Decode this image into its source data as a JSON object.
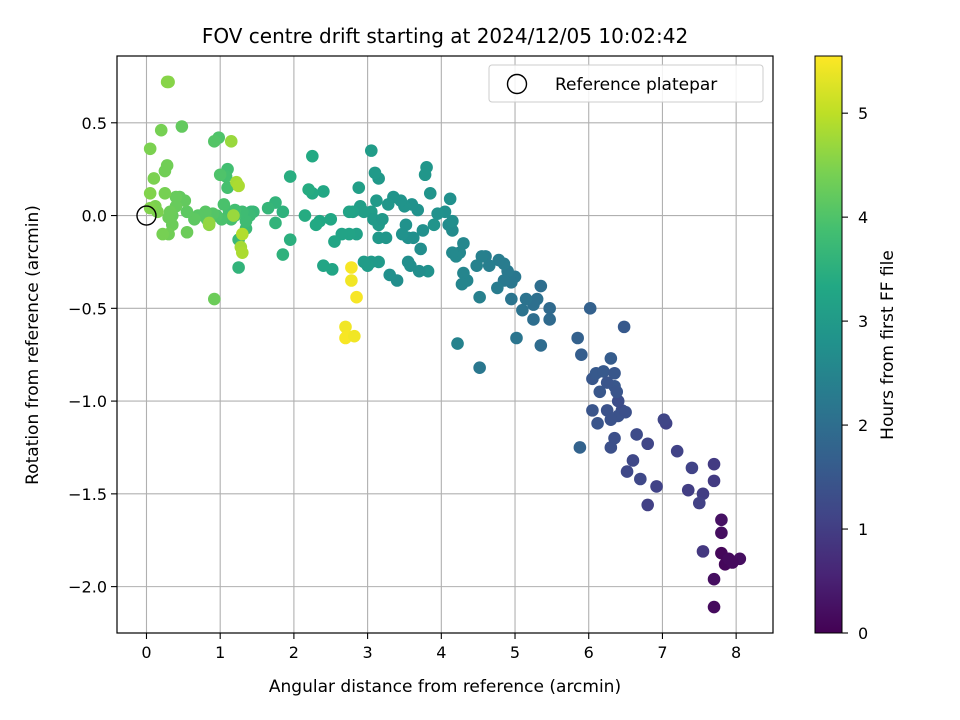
{
  "chart_data": {
    "type": "scatter",
    "title": "FOV centre drift starting at 2024/12/05 10:02:42",
    "xlabel": "Angular distance from reference (arcmin)",
    "ylabel": "Rotation from reference (arcmin)",
    "colorbar_label": "Hours from first FF file",
    "xlim": [
      -0.4,
      8.5
    ],
    "ylim": [
      -2.25,
      0.86
    ],
    "xticks": [
      0,
      1,
      2,
      3,
      4,
      5,
      6,
      7,
      8
    ],
    "yticks": [
      0.5,
      0.0,
      -0.5,
      -1.0,
      -1.5,
      -2.0
    ],
    "ytick_labels": [
      "0.5",
      "0.0",
      "−0.5",
      "−1.0",
      "−1.5",
      "−2.0"
    ],
    "colorbar_range": [
      0,
      5.55
    ],
    "colorbar_ticks": [
      0,
      1,
      2,
      3,
      4,
      5
    ],
    "colormap": "viridis",
    "grid": true,
    "legend": {
      "label": "Reference platepar",
      "placement": "top-right"
    },
    "reference_point": {
      "x": 0,
      "y": 0
    },
    "points": [
      {
        "x": 7.7,
        "y": -2.11,
        "h": 0.15
      },
      {
        "x": 7.7,
        "y": -1.96,
        "h": 0.2
      },
      {
        "x": 7.8,
        "y": -1.82,
        "h": 0.1
      },
      {
        "x": 7.85,
        "y": -1.88,
        "h": 0.1
      },
      {
        "x": 7.9,
        "y": -1.85,
        "h": 0.15
      },
      {
        "x": 8.05,
        "y": -1.85,
        "h": 0.2
      },
      {
        "x": 7.8,
        "y": -1.71,
        "h": 0.2
      },
      {
        "x": 7.8,
        "y": -1.64,
        "h": 0.25
      },
      {
        "x": 7.95,
        "y": -1.87,
        "h": 0.15
      },
      {
        "x": 7.55,
        "y": -1.81,
        "h": 0.9
      },
      {
        "x": 7.7,
        "y": -1.43,
        "h": 0.95
      },
      {
        "x": 7.7,
        "y": -1.34,
        "h": 0.95
      },
      {
        "x": 7.55,
        "y": -1.5,
        "h": 1.0
      },
      {
        "x": 7.5,
        "y": -1.55,
        "h": 1.05
      },
      {
        "x": 7.35,
        "y": -1.48,
        "h": 1.0
      },
      {
        "x": 7.4,
        "y": -1.36,
        "h": 1.1
      },
      {
        "x": 7.2,
        "y": -1.27,
        "h": 1.1
      },
      {
        "x": 7.05,
        "y": -1.12,
        "h": 1.1
      },
      {
        "x": 7.02,
        "y": -1.1,
        "h": 1.15
      },
      {
        "x": 6.92,
        "y": -1.46,
        "h": 1.1
      },
      {
        "x": 6.8,
        "y": -1.56,
        "h": 1.05
      },
      {
        "x": 6.8,
        "y": -1.23,
        "h": 1.15
      },
      {
        "x": 6.7,
        "y": -1.42,
        "h": 1.2
      },
      {
        "x": 6.6,
        "y": -1.32,
        "h": 1.2
      },
      {
        "x": 6.52,
        "y": -1.38,
        "h": 1.2
      },
      {
        "x": 6.65,
        "y": -1.18,
        "h": 1.25
      },
      {
        "x": 6.45,
        "y": -1.05,
        "h": 1.3
      },
      {
        "x": 6.4,
        "y": -1.0,
        "h": 1.3
      },
      {
        "x": 6.35,
        "y": -1.2,
        "h": 1.35
      },
      {
        "x": 6.3,
        "y": -1.25,
        "h": 1.35
      },
      {
        "x": 6.25,
        "y": -1.05,
        "h": 1.4
      },
      {
        "x": 6.12,
        "y": -1.12,
        "h": 1.45
      },
      {
        "x": 6.05,
        "y": -1.05,
        "h": 1.45
      },
      {
        "x": 6.15,
        "y": -0.95,
        "h": 1.5
      },
      {
        "x": 6.35,
        "y": -0.92,
        "h": 1.5
      },
      {
        "x": 6.05,
        "y": -0.88,
        "h": 1.5
      },
      {
        "x": 6.1,
        "y": -0.85,
        "h": 1.55
      },
      {
        "x": 6.2,
        "y": -0.84,
        "h": 1.55
      },
      {
        "x": 6.3,
        "y": -0.77,
        "h": 1.6
      },
      {
        "x": 6.48,
        "y": -0.6,
        "h": 1.55
      },
      {
        "x": 5.9,
        "y": -0.75,
        "h": 1.65
      },
      {
        "x": 5.85,
        "y": -0.66,
        "h": 1.7
      },
      {
        "x": 6.02,
        "y": -0.5,
        "h": 1.7
      },
      {
        "x": 5.88,
        "y": -1.25,
        "h": 1.75
      },
      {
        "x": 6.4,
        "y": -1.08,
        "h": 1.4
      },
      {
        "x": 6.5,
        "y": -1.06,
        "h": 1.35
      },
      {
        "x": 6.3,
        "y": -1.1,
        "h": 1.4
      },
      {
        "x": 6.35,
        "y": -0.85,
        "h": 1.5
      },
      {
        "x": 6.38,
        "y": -0.95,
        "h": 1.45
      },
      {
        "x": 6.25,
        "y": -0.9,
        "h": 1.45
      },
      {
        "x": 5.47,
        "y": -0.56,
        "h": 1.9
      },
      {
        "x": 5.47,
        "y": -0.5,
        "h": 1.9
      },
      {
        "x": 5.35,
        "y": -0.7,
        "h": 1.95
      },
      {
        "x": 5.35,
        "y": -0.38,
        "h": 2.0
      },
      {
        "x": 5.25,
        "y": -0.56,
        "h": 2.0
      },
      {
        "x": 5.25,
        "y": -0.48,
        "h": 2.05
      },
      {
        "x": 5.3,
        "y": -0.45,
        "h": 2.05
      },
      {
        "x": 5.15,
        "y": -0.45,
        "h": 2.1
      },
      {
        "x": 5.1,
        "y": -0.51,
        "h": 2.1
      },
      {
        "x": 5.02,
        "y": -0.66,
        "h": 2.15
      },
      {
        "x": 4.95,
        "y": -0.45,
        "h": 2.15
      },
      {
        "x": 5.0,
        "y": -0.33,
        "h": 2.2
      },
      {
        "x": 4.95,
        "y": -0.36,
        "h": 2.2
      },
      {
        "x": 4.9,
        "y": -0.3,
        "h": 2.25
      },
      {
        "x": 4.85,
        "y": -0.35,
        "h": 2.25
      },
      {
        "x": 4.85,
        "y": -0.26,
        "h": 2.3
      },
      {
        "x": 4.78,
        "y": -0.24,
        "h": 2.3
      },
      {
        "x": 4.76,
        "y": -0.39,
        "h": 2.3
      },
      {
        "x": 4.65,
        "y": -0.27,
        "h": 2.35
      },
      {
        "x": 4.6,
        "y": -0.22,
        "h": 2.35
      },
      {
        "x": 4.52,
        "y": -0.44,
        "h": 2.4
      },
      {
        "x": 4.55,
        "y": -0.22,
        "h": 2.4
      },
      {
        "x": 4.48,
        "y": -0.27,
        "h": 2.45
      },
      {
        "x": 4.52,
        "y": -0.82,
        "h": 2.2
      },
      {
        "x": 4.35,
        "y": -0.35,
        "h": 2.5
      },
      {
        "x": 4.3,
        "y": -0.31,
        "h": 2.5
      },
      {
        "x": 4.28,
        "y": -0.37,
        "h": 2.5
      },
      {
        "x": 4.22,
        "y": -0.69,
        "h": 2.45
      },
      {
        "x": 4.25,
        "y": -0.2,
        "h": 2.55
      },
      {
        "x": 4.3,
        "y": -0.15,
        "h": 2.55
      },
      {
        "x": 4.2,
        "y": -0.22,
        "h": 2.6
      },
      {
        "x": 4.15,
        "y": -0.2,
        "h": 2.6
      },
      {
        "x": 4.15,
        "y": -0.08,
        "h": 2.65
      },
      {
        "x": 4.1,
        "y": -0.05,
        "h": 2.65
      },
      {
        "x": 4.15,
        "y": -0.03,
        "h": 2.7
      },
      {
        "x": 4.12,
        "y": 0.09,
        "h": 2.75
      },
      {
        "x": 4.05,
        "y": 0.02,
        "h": 2.75
      },
      {
        "x": 3.95,
        "y": 0.01,
        "h": 2.8
      },
      {
        "x": 3.9,
        "y": -0.05,
        "h": 2.85
      },
      {
        "x": 3.85,
        "y": 0.12,
        "h": 2.85
      },
      {
        "x": 3.82,
        "y": -0.3,
        "h": 2.8
      },
      {
        "x": 3.8,
        "y": 0.26,
        "h": 2.9
      },
      {
        "x": 3.78,
        "y": 0.22,
        "h": 2.9
      },
      {
        "x": 3.75,
        "y": -0.08,
        "h": 2.75
      },
      {
        "x": 3.72,
        "y": -0.18,
        "h": 2.7
      },
      {
        "x": 3.7,
        "y": -0.3,
        "h": 2.7
      },
      {
        "x": 3.68,
        "y": 0.03,
        "h": 2.8
      },
      {
        "x": 3.62,
        "y": -0.12,
        "h": 2.75
      },
      {
        "x": 3.6,
        "y": 0.06,
        "h": 2.8
      },
      {
        "x": 3.58,
        "y": -0.27,
        "h": 2.7
      },
      {
        "x": 3.55,
        "y": -0.12,
        "h": 2.75
      },
      {
        "x": 3.55,
        "y": -0.25,
        "h": 2.7
      },
      {
        "x": 3.52,
        "y": -0.05,
        "h": 2.8
      },
      {
        "x": 3.5,
        "y": 0.05,
        "h": 2.85
      },
      {
        "x": 3.47,
        "y": -0.1,
        "h": 2.8
      },
      {
        "x": 3.45,
        "y": 0.08,
        "h": 2.85
      },
      {
        "x": 3.4,
        "y": -0.35,
        "h": 2.7
      },
      {
        "x": 3.35,
        "y": 0.1,
        "h": 2.85
      },
      {
        "x": 3.3,
        "y": -0.32,
        "h": 2.75
      },
      {
        "x": 3.28,
        "y": 0.06,
        "h": 2.9
      },
      {
        "x": 3.15,
        "y": 0.2,
        "h": 2.95
      },
      {
        "x": 3.12,
        "y": 0.08,
        "h": 3.0
      },
      {
        "x": 3.1,
        "y": 0.23,
        "h": 3.0
      },
      {
        "x": 3.05,
        "y": 0.35,
        "h": 3.05
      },
      {
        "x": 3.05,
        "y": 0.02,
        "h": 3.05
      },
      {
        "x": 3.08,
        "y": -0.02,
        "h": 3.0
      },
      {
        "x": 3.15,
        "y": -0.05,
        "h": 3.0
      },
      {
        "x": 3.15,
        "y": -0.25,
        "h": 3.0
      },
      {
        "x": 3.15,
        "y": -0.12,
        "h": 2.95
      },
      {
        "x": 3.2,
        "y": -0.02,
        "h": 2.95
      },
      {
        "x": 3.25,
        "y": -0.12,
        "h": 2.9
      },
      {
        "x": 3.05,
        "y": -0.25,
        "h": 3.0
      },
      {
        "x": 3.0,
        "y": -0.27,
        "h": 3.05
      },
      {
        "x": 2.95,
        "y": -0.25,
        "h": 3.05
      },
      {
        "x": 2.95,
        "y": 0.02,
        "h": 3.1
      },
      {
        "x": 2.9,
        "y": 0.05,
        "h": 3.1
      },
      {
        "x": 2.88,
        "y": 0.15,
        "h": 3.1
      },
      {
        "x": 2.85,
        "y": -0.1,
        "h": 3.15
      },
      {
        "x": 2.8,
        "y": 0.02,
        "h": 3.15
      },
      {
        "x": 2.75,
        "y": 0.02,
        "h": 3.2
      },
      {
        "x": 2.75,
        "y": -0.1,
        "h": 3.2
      },
      {
        "x": 2.65,
        "y": -0.1,
        "h": 3.2
      },
      {
        "x": 2.55,
        "y": -0.14,
        "h": 3.25
      },
      {
        "x": 2.52,
        "y": -0.29,
        "h": 3.25
      },
      {
        "x": 2.4,
        "y": -0.27,
        "h": 3.25
      },
      {
        "x": 2.4,
        "y": 0.13,
        "h": 3.3
      },
      {
        "x": 2.35,
        "y": -0.03,
        "h": 3.3
      },
      {
        "x": 2.3,
        "y": -0.05,
        "h": 3.35
      },
      {
        "x": 2.25,
        "y": 0.32,
        "h": 3.35
      },
      {
        "x": 2.25,
        "y": 0.12,
        "h": 3.35
      },
      {
        "x": 2.2,
        "y": 0.14,
        "h": 3.4
      },
      {
        "x": 2.15,
        "y": 0.0,
        "h": 3.4
      },
      {
        "x": 2.5,
        "y": -0.02,
        "h": 3.3
      },
      {
        "x": 1.95,
        "y": 0.21,
        "h": 3.45
      },
      {
        "x": 1.95,
        "y": -0.13,
        "h": 3.5
      },
      {
        "x": 1.85,
        "y": 0.02,
        "h": 3.55
      },
      {
        "x": 1.85,
        "y": -0.21,
        "h": 3.55
      },
      {
        "x": 1.75,
        "y": 0.07,
        "h": 3.6
      },
      {
        "x": 1.75,
        "y": -0.04,
        "h": 3.6
      },
      {
        "x": 1.65,
        "y": 0.04,
        "h": 3.65
      },
      {
        "x": 1.45,
        "y": 0.02,
        "h": 3.7
      },
      {
        "x": 1.42,
        "y": 0.02,
        "h": 3.7
      },
      {
        "x": 1.4,
        "y": 0.0,
        "h": 3.75
      },
      {
        "x": 1.35,
        "y": -0.07,
        "h": 3.75
      },
      {
        "x": 1.35,
        "y": -0.03,
        "h": 3.8
      },
      {
        "x": 1.3,
        "y": 0.02,
        "h": 3.8
      },
      {
        "x": 1.25,
        "y": -0.28,
        "h": 3.6
      },
      {
        "x": 1.25,
        "y": -0.13,
        "h": 3.7
      },
      {
        "x": 1.2,
        "y": 0.0,
        "h": 3.85
      },
      {
        "x": 1.2,
        "y": 0.03,
        "h": 3.85
      },
      {
        "x": 1.15,
        "y": -0.02,
        "h": 3.9
      },
      {
        "x": 1.12,
        "y": 0.02,
        "h": 3.9
      },
      {
        "x": 1.1,
        "y": 0.15,
        "h": 3.9
      },
      {
        "x": 1.1,
        "y": 0.25,
        "h": 3.85
      },
      {
        "x": 1.08,
        "y": 0.21,
        "h": 3.9
      },
      {
        "x": 1.05,
        "y": 0.06,
        "h": 3.95
      },
      {
        "x": 1.02,
        "y": -0.02,
        "h": 3.95
      },
      {
        "x": 1.0,
        "y": 0.22,
        "h": 4.0
      },
      {
        "x": 0.98,
        "y": 0.42,
        "h": 4.0
      },
      {
        "x": 0.92,
        "y": 0.4,
        "h": 4.05
      },
      {
        "x": 0.95,
        "y": 0.0,
        "h": 4.0
      },
      {
        "x": 0.9,
        "y": 0.01,
        "h": 4.05
      },
      {
        "x": 0.85,
        "y": -0.04,
        "h": 4.05
      },
      {
        "x": 0.82,
        "y": -0.02,
        "h": 4.1
      },
      {
        "x": 0.8,
        "y": 0.02,
        "h": 4.1
      },
      {
        "x": 0.92,
        "y": -0.45,
        "h": 4.3
      },
      {
        "x": 0.7,
        "y": 0.0,
        "h": 4.1
      },
      {
        "x": 0.65,
        "y": -0.02,
        "h": 4.15
      },
      {
        "x": 0.55,
        "y": 0.02,
        "h": 4.15
      },
      {
        "x": 0.52,
        "y": 0.08,
        "h": 4.2
      },
      {
        "x": 0.48,
        "y": 0.48,
        "h": 4.2
      },
      {
        "x": 0.45,
        "y": 0.1,
        "h": 4.2
      },
      {
        "x": 0.4,
        "y": 0.05,
        "h": 4.25
      },
      {
        "x": 0.4,
        "y": 0.1,
        "h": 4.25
      },
      {
        "x": 0.35,
        "y": 0.0,
        "h": 4.25
      },
      {
        "x": 0.35,
        "y": -0.05,
        "h": 4.3
      },
      {
        "x": 0.32,
        "y": 0.02,
        "h": 4.3
      },
      {
        "x": 0.3,
        "y": -0.01,
        "h": 4.3
      },
      {
        "x": 0.3,
        "y": -0.1,
        "h": 4.35
      },
      {
        "x": 0.28,
        "y": 0.27,
        "h": 4.35
      },
      {
        "x": 0.25,
        "y": 0.24,
        "h": 4.35
      },
      {
        "x": 0.25,
        "y": 0.12,
        "h": 4.4
      },
      {
        "x": 0.22,
        "y": -0.1,
        "h": 4.4
      },
      {
        "x": 0.2,
        "y": 0.46,
        "h": 4.4
      },
      {
        "x": 0.15,
        "y": 0.02,
        "h": 4.45
      },
      {
        "x": 0.12,
        "y": 0.05,
        "h": 4.45
      },
      {
        "x": 0.1,
        "y": 0.2,
        "h": 4.45
      },
      {
        "x": 0.05,
        "y": 0.36,
        "h": 4.45
      },
      {
        "x": 0.05,
        "y": 0.12,
        "h": 4.5
      },
      {
        "x": 0.05,
        "y": 0.04,
        "h": 4.5
      },
      {
        "x": 0.55,
        "y": -0.09,
        "h": 4.3
      },
      {
        "x": 0.28,
        "y": 0.72,
        "h": 4.55
      },
      {
        "x": 0.3,
        "y": 0.72,
        "h": 4.55
      },
      {
        "x": 0.85,
        "y": -0.05,
        "h": 4.6
      },
      {
        "x": 1.15,
        "y": 0.4,
        "h": 4.7
      },
      {
        "x": 1.22,
        "y": 0.18,
        "h": 4.8
      },
      {
        "x": 1.25,
        "y": 0.16,
        "h": 4.85
      },
      {
        "x": 1.3,
        "y": -0.1,
        "h": 4.9
      },
      {
        "x": 1.28,
        "y": -0.17,
        "h": 4.8
      },
      {
        "x": 1.3,
        "y": -0.2,
        "h": 4.85
      },
      {
        "x": 1.18,
        "y": 0.0,
        "h": 4.7
      },
      {
        "x": 0.85,
        "y": -0.04,
        "h": 4.65
      },
      {
        "x": 2.78,
        "y": -0.28,
        "h": 5.5
      },
      {
        "x": 2.78,
        "y": -0.35,
        "h": 5.45
      },
      {
        "x": 2.85,
        "y": -0.44,
        "h": 5.5
      },
      {
        "x": 2.7,
        "y": -0.6,
        "h": 5.45
      },
      {
        "x": 2.72,
        "y": -0.65,
        "h": 5.5
      },
      {
        "x": 2.7,
        "y": -0.66,
        "h": 5.5
      },
      {
        "x": 2.82,
        "y": -0.65,
        "h": 5.45
      }
    ]
  }
}
